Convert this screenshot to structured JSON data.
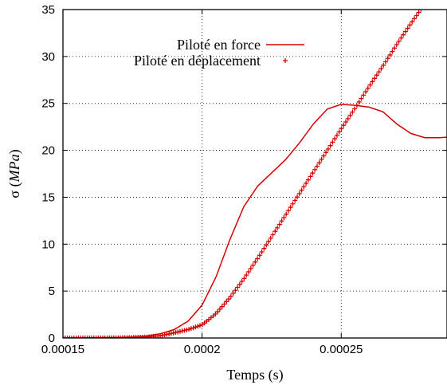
{
  "chart_data": {
    "type": "line",
    "title": "",
    "xlabel": "Temps (s)",
    "ylabel_prefix": "σ (",
    "ylabel_unit": "MPa",
    "ylabel_suffix": ")",
    "xlim": [
      0.00015,
      0.000288
    ],
    "ylim": [
      0,
      35
    ],
    "xticks": [
      0.00015,
      0.0002,
      0.00025
    ],
    "xtick_labels": [
      "0.00015",
      "0.0002",
      "0.00025"
    ],
    "yticks": [
      0,
      5,
      10,
      15,
      20,
      25,
      30,
      35
    ],
    "ytick_labels": [
      "0",
      "5",
      "10",
      "15",
      "20",
      "25",
      "30",
      "35"
    ],
    "grid": true,
    "legend_position": "top-center",
    "series": [
      {
        "name": "Piloté en force",
        "style": "line",
        "color": "#d40000",
        "points": [
          [
            0.00015,
            0.0
          ],
          [
            0.00016,
            0.02
          ],
          [
            0.00017,
            0.05
          ],
          [
            0.000175,
            0.1
          ],
          [
            0.00018,
            0.2
          ],
          [
            0.000185,
            0.45
          ],
          [
            0.00019,
            0.9
          ],
          [
            0.000195,
            1.8
          ],
          [
            0.0002,
            3.5
          ],
          [
            0.000205,
            6.5
          ],
          [
            0.00021,
            10.5
          ],
          [
            0.000215,
            14.0
          ],
          [
            0.00022,
            16.2
          ],
          [
            0.000225,
            17.6
          ],
          [
            0.00023,
            19.0
          ],
          [
            0.000235,
            20.8
          ],
          [
            0.00024,
            22.8
          ],
          [
            0.000245,
            24.4
          ],
          [
            0.00025,
            24.9
          ],
          [
            0.000255,
            24.8
          ],
          [
            0.00026,
            24.6
          ],
          [
            0.000265,
            24.1
          ],
          [
            0.00027,
            22.8
          ],
          [
            0.000275,
            21.8
          ],
          [
            0.00028,
            21.35
          ],
          [
            0.000285,
            21.35
          ],
          [
            0.000288,
            21.4
          ]
        ]
      },
      {
        "name": "Piloté en déplacement",
        "style": "points",
        "color": "#d40000",
        "points": [
          [
            0.00015,
            0.0
          ],
          [
            0.00017,
            0.02
          ],
          [
            0.00018,
            0.1
          ],
          [
            0.000185,
            0.25
          ],
          [
            0.00019,
            0.55
          ],
          [
            0.000195,
            0.9
          ],
          [
            0.0002,
            1.4
          ],
          [
            0.000205,
            2.6
          ],
          [
            0.00021,
            4.3
          ],
          [
            0.000215,
            6.3
          ],
          [
            0.00022,
            8.5
          ],
          [
            0.000225,
            10.8
          ],
          [
            0.00023,
            13.1
          ],
          [
            0.000235,
            15.4
          ],
          [
            0.00024,
            17.7
          ],
          [
            0.000245,
            20.0
          ],
          [
            0.00025,
            22.3
          ],
          [
            0.000255,
            24.5
          ],
          [
            0.00026,
            26.8
          ],
          [
            0.000265,
            29.0
          ],
          [
            0.00027,
            31.3
          ],
          [
            0.000275,
            33.5
          ],
          [
            0.00028,
            35.6
          ],
          [
            0.000285,
            37.8
          ]
        ]
      }
    ]
  }
}
